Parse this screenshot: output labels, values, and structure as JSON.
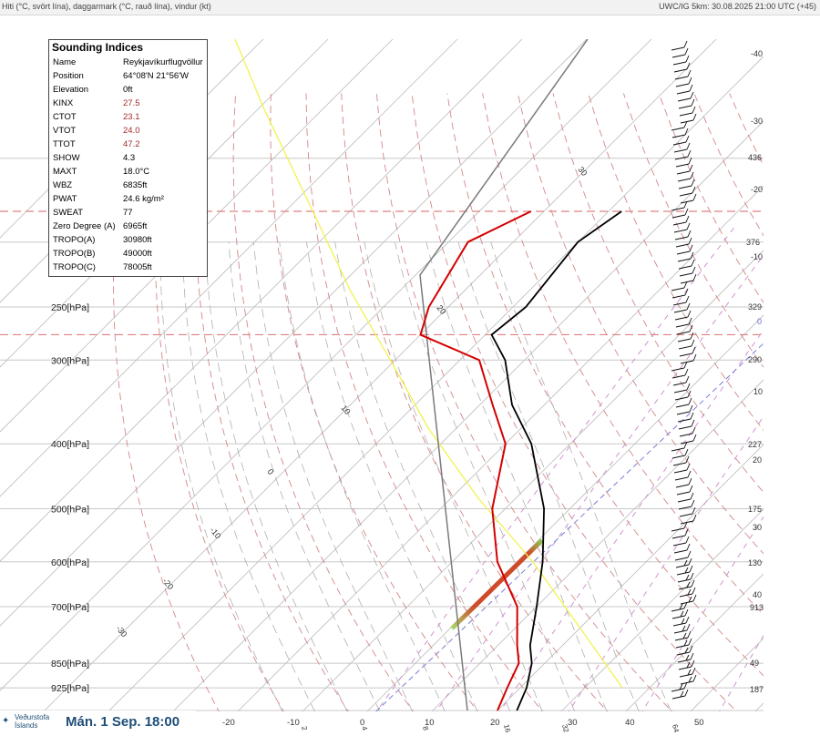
{
  "header": {
    "left": "Hiti (°C, svört lína), daggarmark (°C, rauð lína), vindur (kt)",
    "right": "UWC/IG 5km: 30.08.2025 21:00 UTC (+45)"
  },
  "indices": {
    "title": "Sounding Indices",
    "rows": [
      {
        "k": "Name",
        "v": "Reykjavíkurflugvöllur",
        "hl": false
      },
      {
        "k": "Position",
        "v": "64°08'N 21°56'W",
        "hl": false
      },
      {
        "k": "Elevation",
        "v": "0ft",
        "hl": false
      },
      {
        "k": "KINX",
        "v": "27.5",
        "hl": true
      },
      {
        "k": "CTOT",
        "v": "23.1",
        "hl": true
      },
      {
        "k": "VTOT",
        "v": "24.0",
        "hl": true
      },
      {
        "k": "TTOT",
        "v": "47.2",
        "hl": true
      },
      {
        "k": "SHOW",
        "v": "4.3",
        "hl": false
      },
      {
        "k": "MAXT",
        "v": "18.0°C",
        "hl": false
      },
      {
        "k": "WBZ",
        "v": "6835ft",
        "hl": false
      },
      {
        "k": "PWAT",
        "v": "24.6 kg/m²",
        "hl": false
      },
      {
        "k": "SWEAT",
        "v": "77",
        "hl": false
      },
      {
        "k": "Zero Degree (A)",
        "v": "6965ft",
        "hl": false
      },
      {
        "k": "TROPO(A)",
        "v": "30980ft",
        "hl": false
      },
      {
        "k": "TROPO(B)",
        "v": "49000ft",
        "hl": false
      },
      {
        "k": "TROPO(C)",
        "v": "78005ft",
        "hl": false
      }
    ]
  },
  "footer": {
    "logo_line1": "Veðurstofa",
    "logo_line2": "Íslands",
    "datetime": "Mán. 1 Sep. 18:00"
  },
  "colors": {
    "temperature": "#000000",
    "dewpoint": "#d40000",
    "parcel": "#ffff66",
    "grid": "#c8c8c8",
    "mixing": "#cc88cc",
    "tropo": "#e08080"
  },
  "chart_data": {
    "type": "skew-t",
    "pressure_levels": [
      {
        "p": 250,
        "label": "250[hPa]"
      },
      {
        "p": 300,
        "label": "300[hPa]"
      },
      {
        "p": 400,
        "label": "400[hPa]"
      },
      {
        "p": 500,
        "label": "500[hPa]"
      },
      {
        "p": 600,
        "label": "600[hPa]"
      },
      {
        "p": 700,
        "label": "700[hPa]"
      },
      {
        "p": 850,
        "label": "850[hPa]"
      },
      {
        "p": 925,
        "label": "925[hPa]"
      }
    ],
    "height_labels": [
      "-40",
      "-30",
      "436",
      "-20",
      "376",
      "-10",
      "329",
      "0",
      "290",
      "10",
      "227",
      "20",
      "175",
      "30",
      "130",
      "40",
      "913",
      "49",
      "187"
    ],
    "temp_axis_labels": [
      "-20",
      "-10",
      "0",
      "10",
      "20",
      "30",
      "40",
      "50"
    ],
    "isotherm_labels": [
      "30",
      "20",
      "10",
      "0",
      "-10",
      "-20",
      "-30"
    ],
    "mixing_ratio_labels": [
      "2",
      "4",
      "8",
      "16",
      "32",
      "64"
    ],
    "tropopause_pressures_hPa": [
      180,
      275
    ],
    "temperature_profile": [
      [
        1000,
        13
      ],
      [
        925,
        11
      ],
      [
        850,
        8
      ],
      [
        800,
        5
      ],
      [
        700,
        0
      ],
      [
        600,
        -6
      ],
      [
        500,
        -14
      ],
      [
        400,
        -26
      ],
      [
        350,
        -35
      ],
      [
        300,
        -43
      ],
      [
        275,
        -49
      ],
      [
        250,
        -48
      ],
      [
        200,
        -50
      ],
      [
        180,
        -48
      ]
    ],
    "dewpoint_profile": [
      [
        1000,
        10
      ],
      [
        925,
        8
      ],
      [
        850,
        6
      ],
      [
        800,
        3
      ],
      [
        700,
        -3
      ],
      [
        600,
        -13
      ],
      [
        500,
        -22
      ],
      [
        400,
        -30
      ],
      [
        350,
        -38
      ],
      [
        300,
        -47
      ],
      [
        275,
        -60
      ],
      [
        250,
        -63
      ],
      [
        200,
        -67
      ],
      [
        180,
        -62
      ]
    ]
  }
}
